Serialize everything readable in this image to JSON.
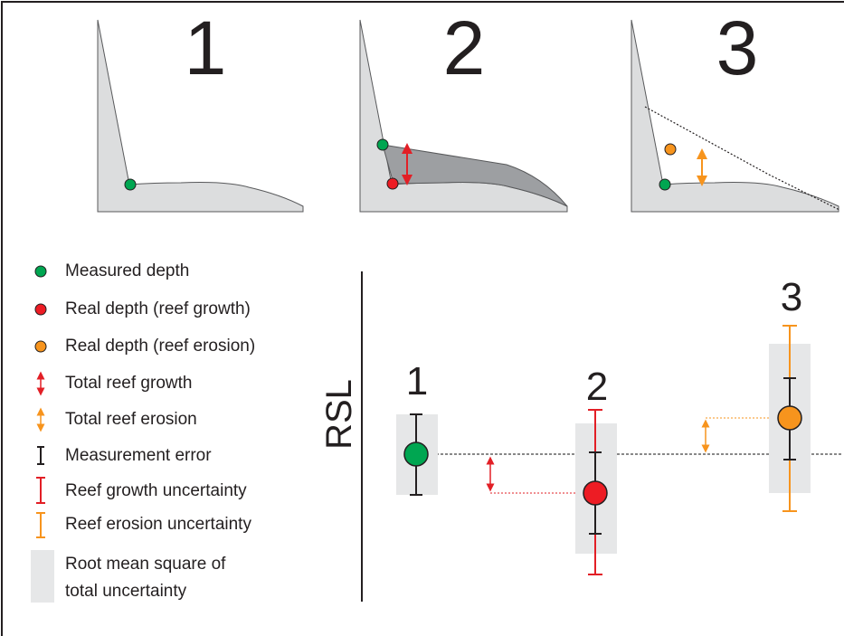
{
  "panels": [
    {
      "label": "1"
    },
    {
      "label": "2"
    },
    {
      "label": "3"
    }
  ],
  "legend": [
    {
      "label": "Measured depth"
    },
    {
      "label": "Real depth (reef growth)"
    },
    {
      "label": "Real depth (reef erosion)"
    },
    {
      "label": "Total reef growth"
    },
    {
      "label": "Total reef erosion"
    },
    {
      "label": "Measurement error"
    },
    {
      "label": "Reef growth uncertainty"
    },
    {
      "label": "Reef erosion uncertainty"
    },
    {
      "lines": [
        "Root mean square of",
        "total uncertainty"
      ]
    }
  ],
  "axis_label": "RSL",
  "plot_points": [
    {
      "label": "1"
    },
    {
      "label": "2"
    },
    {
      "label": "3"
    }
  ]
}
